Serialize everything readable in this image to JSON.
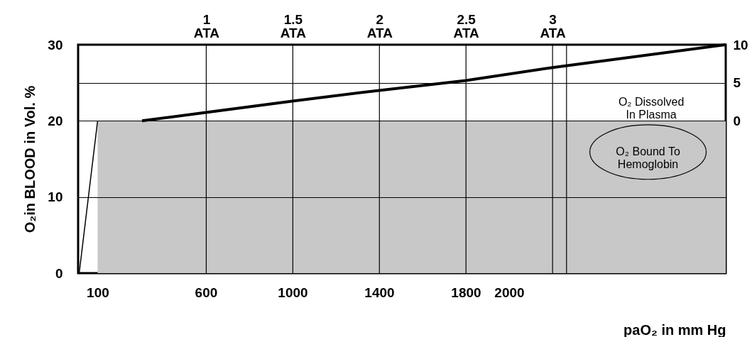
{
  "chart_data": {
    "type": "line",
    "xlabel": "paO₂ in mm Hg",
    "ylabel": "O₂in BLOOD in Vol. %",
    "xlim": [
      10,
      3000
    ],
    "xticks": [
      100,
      600,
      1000,
      1400,
      1800,
      2000
    ],
    "x2lim": [
      0.26,
      4
    ],
    "x2ticks": [
      {
        "value": 1,
        "label": "1 ATA"
      },
      {
        "value": 1.5,
        "label": "1.5 ATA"
      },
      {
        "value": 2,
        "label": "2 ATA"
      },
      {
        "value": 2.5,
        "label": "2.5 ATA"
      },
      {
        "value": 3,
        "label": "3 ATA"
      }
    ],
    "ylim": [
      0,
      30
    ],
    "yticks": [
      0,
      10,
      20,
      30
    ],
    "y2lim": [
      -20,
      10
    ],
    "y2ticks": [
      0,
      5,
      10
    ],
    "series": [
      {
        "type": "area",
        "color": "#c8c8c8",
        "x": [
          100,
          3000
        ],
        "values": [
          20,
          20
        ]
      },
      {
        "color": "#000000",
        "x": [
          15,
          100
        ],
        "values": [
          0,
          20
        ]
      },
      {
        "axis": "y2",
        "color": "#000000",
        "x": [
          305,
          600,
          1000,
          1400,
          1800,
          2200,
          3000
        ],
        "values": [
          0,
          1.1,
          2.6,
          4,
          5.3,
          7,
          10
        ]
      }
    ],
    "ref_lines": [
      {
        "axis": "x",
        "value": 2265,
        "label": null
      }
    ],
    "annotations": [
      "O₂ Dissolved\nIn Plasma",
      "O₂ Bound To\nHemoglobin"
    ],
    "grid": true
  }
}
